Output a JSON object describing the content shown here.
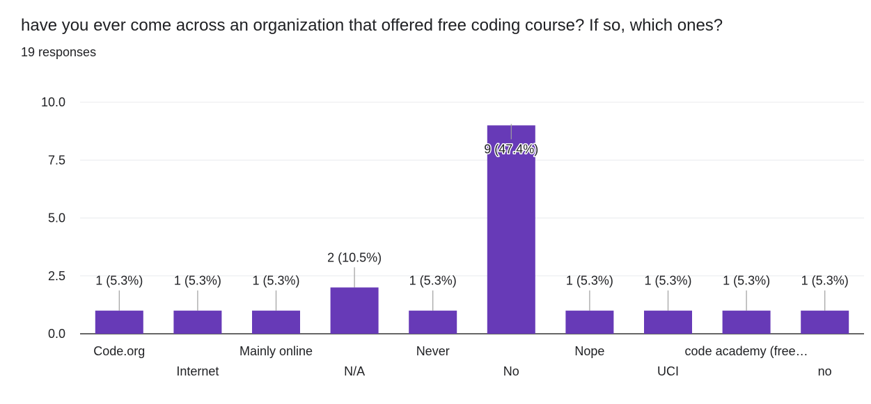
{
  "question": {
    "title": "have you ever come across an organization that offered free coding course? If so, which ones?",
    "responses": "19 responses"
  },
  "colors": {
    "bar": "#673ab7",
    "grid": "#e8eaed",
    "baseline": "#333333",
    "label_line": "#9e9e9e",
    "text": "#202124"
  },
  "chart_data": {
    "type": "bar",
    "title": "",
    "xlabel": "",
    "ylabel": "",
    "ylim": [
      0,
      10
    ],
    "y_ticks": [
      "0.0",
      "2.5",
      "5.0",
      "7.5",
      "10.0"
    ],
    "grid": true,
    "categories": [
      "Code.org",
      "Internet",
      "Mainly online",
      "N/A",
      "Never",
      "No",
      "Nope",
      "UCI",
      "code academy (free…",
      "no"
    ],
    "values": [
      1,
      1,
      1,
      2,
      1,
      9,
      1,
      1,
      1,
      1
    ],
    "data_labels": [
      "1 (5.3%)",
      "1 (5.3%)",
      "1 (5.3%)",
      "2 (10.5%)",
      "1 (5.3%)",
      "9 (47.4%)",
      "1 (5.3%)",
      "1 (5.3%)",
      "1 (5.3%)",
      "1 (5.3%)"
    ]
  }
}
